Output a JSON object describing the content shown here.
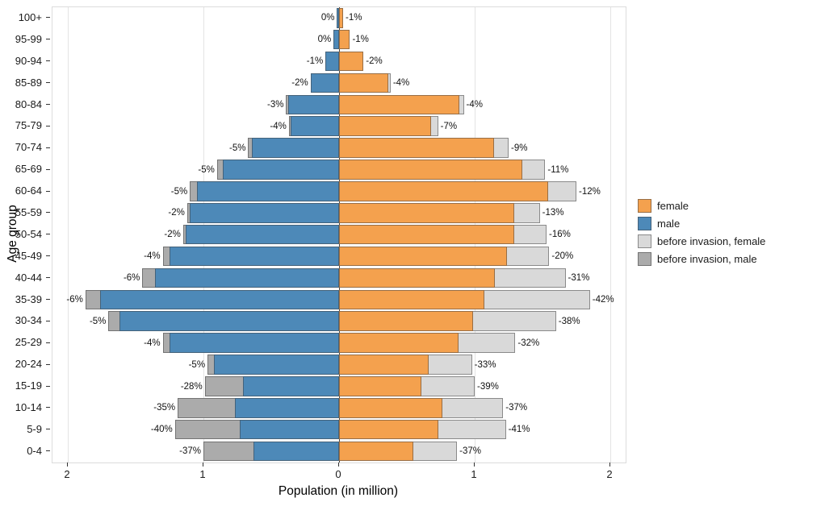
{
  "chart_data": {
    "type": "bar",
    "variant": "population-pyramid",
    "title": "",
    "xlabel": "Population (in million)",
    "ylabel": "Age group",
    "xlim_millions": [
      -2,
      2
    ],
    "x_ticks": [
      "2",
      "1",
      "0",
      "1",
      "2"
    ],
    "x_tick_values": [
      -2,
      -1,
      0,
      1,
      2
    ],
    "grid": true,
    "legend_position": "right",
    "colors": {
      "female": "#F4A14E",
      "male": "#4D89B8",
      "before_female": "#D9D9D9",
      "before_male": "#ABABAB"
    },
    "legend": [
      {
        "label": "female",
        "color": "#F4A14E"
      },
      {
        "label": "male",
        "color": "#4D89B8"
      },
      {
        "label": "before invasion, female",
        "color": "#D9D9D9"
      },
      {
        "label": "before invasion, male",
        "color": "#ABABAB"
      }
    ],
    "units": "million people",
    "rows": [
      {
        "age": "100+",
        "male_before": 0.015,
        "male_now": 0.015,
        "male_pct": "0%",
        "female_before": 0.03,
        "female_now": 0.03,
        "female_pct": "-1%"
      },
      {
        "age": "95-99",
        "male_before": 0.04,
        "male_now": 0.04,
        "male_pct": "0%",
        "female_before": 0.08,
        "female_now": 0.079,
        "female_pct": "-1%"
      },
      {
        "age": "90-94",
        "male_before": 0.1,
        "male_now": 0.099,
        "male_pct": "-1%",
        "female_before": 0.18,
        "female_now": 0.176,
        "female_pct": "-2%"
      },
      {
        "age": "85-89",
        "male_before": 0.21,
        "male_now": 0.206,
        "male_pct": "-2%",
        "female_before": 0.38,
        "female_now": 0.365,
        "female_pct": "-4%"
      },
      {
        "age": "80-84",
        "male_before": 0.39,
        "male_now": 0.378,
        "male_pct": "-3%",
        "female_before": 0.92,
        "female_now": 0.885,
        "female_pct": "-4%"
      },
      {
        "age": "75-79",
        "male_before": 0.37,
        "male_now": 0.355,
        "male_pct": "-4%",
        "female_before": 0.73,
        "female_now": 0.68,
        "female_pct": "-7%"
      },
      {
        "age": "70-74",
        "male_before": 0.67,
        "male_now": 0.64,
        "male_pct": "-5%",
        "female_before": 1.25,
        "female_now": 1.14,
        "female_pct": "-9%"
      },
      {
        "age": "65-69",
        "male_before": 0.9,
        "male_now": 0.855,
        "male_pct": "-5%",
        "female_before": 1.52,
        "female_now": 1.35,
        "female_pct": "-11%"
      },
      {
        "age": "60-64",
        "male_before": 1.1,
        "male_now": 1.045,
        "male_pct": "-5%",
        "female_before": 1.75,
        "female_now": 1.54,
        "female_pct": "-12%"
      },
      {
        "age": "55-59",
        "male_before": 1.12,
        "male_now": 1.1,
        "male_pct": "-2%",
        "female_before": 1.48,
        "female_now": 1.29,
        "female_pct": "-13%"
      },
      {
        "age": "50-54",
        "male_before": 1.15,
        "male_now": 1.13,
        "male_pct": "-2%",
        "female_before": 1.53,
        "female_now": 1.29,
        "female_pct": "-16%"
      },
      {
        "age": "45-49",
        "male_before": 1.3,
        "male_now": 1.25,
        "male_pct": "-4%",
        "female_before": 1.55,
        "female_now": 1.24,
        "female_pct": "-20%"
      },
      {
        "age": "40-44",
        "male_before": 1.45,
        "male_now": 1.36,
        "male_pct": "-6%",
        "female_before": 1.67,
        "female_now": 1.15,
        "female_pct": "-31%"
      },
      {
        "age": "35-39",
        "male_before": 1.87,
        "male_now": 1.76,
        "male_pct": "-6%",
        "female_before": 1.85,
        "female_now": 1.07,
        "female_pct": "-42%"
      },
      {
        "age": "30-34",
        "male_before": 1.7,
        "male_now": 1.62,
        "male_pct": "-5%",
        "female_before": 1.6,
        "female_now": 0.99,
        "female_pct": "-38%"
      },
      {
        "age": "25-29",
        "male_before": 1.3,
        "male_now": 1.25,
        "male_pct": "-4%",
        "female_before": 1.3,
        "female_now": 0.88,
        "female_pct": "-32%"
      },
      {
        "age": "20-24",
        "male_before": 0.97,
        "male_now": 0.92,
        "male_pct": "-5%",
        "female_before": 0.98,
        "female_now": 0.66,
        "female_pct": "-33%"
      },
      {
        "age": "15-19",
        "male_before": 0.99,
        "male_now": 0.71,
        "male_pct": "-28%",
        "female_before": 1.0,
        "female_now": 0.61,
        "female_pct": "-39%"
      },
      {
        "age": "10-14",
        "male_before": 1.19,
        "male_now": 0.77,
        "male_pct": "-35%",
        "female_before": 1.21,
        "female_now": 0.76,
        "female_pct": "-37%"
      },
      {
        "age": "5-9",
        "male_before": 1.21,
        "male_now": 0.73,
        "male_pct": "-40%",
        "female_before": 1.23,
        "female_now": 0.73,
        "female_pct": "-41%"
      },
      {
        "age": "0-4",
        "male_before": 1.0,
        "male_now": 0.63,
        "male_pct": "-37%",
        "female_before": 0.87,
        "female_now": 0.55,
        "female_pct": "-37%"
      }
    ]
  }
}
